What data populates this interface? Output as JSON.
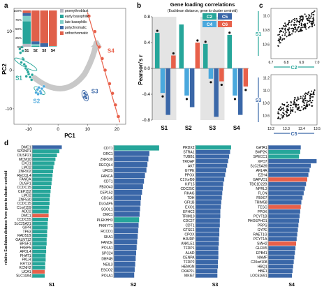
{
  "panel_labels": {
    "a": "a",
    "b": "b",
    "c": "c",
    "d": "d"
  },
  "colors": {
    "teal": "#26a69a",
    "blue": "#3a67a8",
    "red": "#e8604a",
    "sky": "#4aa8dd",
    "gray_bg": "#e4e4e4",
    "s1_stage_colors": [
      "#b9b9c4",
      "#27a49a",
      "#7ecfc8",
      "#3c6aa6",
      "#e0604a"
    ]
  },
  "chart_data": [
    {
      "panel": "a",
      "type": "scatter",
      "title": "",
      "xlabel": "PC1",
      "ylabel": "PC2",
      "xlim": [
        -15,
        23
      ],
      "ylim": [
        -14,
        16
      ],
      "x_ticks": [
        "-10",
        "0",
        "10",
        "20"
      ],
      "y_ticks": [
        "-10",
        "0",
        "10"
      ],
      "arrow_label_s4": "S4",
      "clusters": [
        {
          "name": "S1",
          "points": [
            [
              -12,
              3
            ],
            [
              -12.5,
              2
            ],
            [
              -11.5,
              1.5
            ],
            [
              -11,
              0.5
            ],
            [
              -10.5,
              0
            ],
            [
              -10,
              -1
            ],
            [
              -9.5,
              -1.8
            ],
            [
              -12.8,
              4.5
            ],
            [
              -13,
              5.5
            ],
            [
              -12.2,
              6
            ],
            [
              -9,
              -2.5
            ],
            [
              -11.8,
              2.8
            ],
            [
              -10.2,
              -0.5
            ],
            [
              -8.8,
              -1.2
            ],
            [
              -11,
              1
            ],
            [
              -12,
              5
            ],
            [
              -10.8,
              -1.6
            ]
          ]
        },
        {
          "name": "S2",
          "points": [
            [
              -7,
              -5
            ],
            [
              -6.5,
              -4.5
            ],
            [
              -6,
              -5.5
            ],
            [
              -7.5,
              -5.8
            ],
            [
              -5.5,
              -4.8
            ],
            [
              -4.8,
              -4.2
            ],
            [
              -6.8,
              -6.2
            ],
            [
              -5.8,
              -6
            ]
          ]
        },
        {
          "name": "S3",
          "points": [
            [
              9,
              -6
            ],
            [
              9.5,
              -6.5
            ],
            [
              8.8,
              -7
            ],
            [
              9.6,
              -7.2
            ],
            [
              9.2,
              -6.8
            ]
          ]
        },
        {
          "name": "S4",
          "points": [
            [
              10.5,
              14
            ],
            [
              12.5,
              10
            ],
            [
              14,
              6
            ],
            [
              15,
              3
            ],
            [
              16,
              0
            ],
            [
              17.5,
              -3.5
            ],
            [
              18.5,
              -6
            ],
            [
              19.5,
              -9
            ],
            [
              20.5,
              -12
            ]
          ]
        }
      ],
      "inset": {
        "type": "stacked_bar",
        "categories": [
          "S1",
          "S2",
          "S3",
          "S4"
        ],
        "y_ticks": [
          "100%",
          "75%",
          "50%",
          "25%",
          "0%"
        ],
        "legend": [
          "proerythroblast",
          "early basophilic",
          "late basophilic",
          "polychromatic",
          "orthochromatic"
        ],
        "values": [
          [
            0.08,
            0.62,
            0.15,
            0.08,
            0.07
          ],
          [
            0.0,
            0.02,
            0.05,
            0.08,
            0.85
          ],
          [
            0.0,
            0.0,
            0.0,
            0.1,
            0.9
          ],
          [
            0.0,
            0.0,
            0.02,
            0.0,
            0.98
          ]
        ]
      }
    },
    {
      "panel": "b",
      "type": "bar",
      "title": "Gene loading correlations",
      "subtitle": "(Euclidean distance, gene to cluster centroid)",
      "ylabel": "Pearson's r",
      "ylim": [
        -0.8,
        0.8
      ],
      "y_ticks": [
        "0.8",
        "0.4",
        "0.0",
        "-0.4",
        "-0.8"
      ],
      "categories": [
        "S1",
        "S2",
        "S3",
        "S4"
      ],
      "legend": [
        "C2",
        "C5",
        "C4",
        "C6"
      ],
      "series": [
        {
          "name": "C2",
          "values": [
            0.55,
            0.68,
            0.38,
            0.52
          ]
        },
        {
          "name": "C4",
          "values": [
            -0.38,
            -0.42,
            -0.16,
            -0.42
          ]
        },
        {
          "name": "C5",
          "values": [
            -0.72,
            -0.6,
            -0.75,
            -0.72
          ]
        },
        {
          "name": "C6",
          "values": [
            0.2,
            0.4,
            -0.2,
            -0.28
          ]
        }
      ],
      "stars": [
        [
          1,
          1,
          0,
          1
        ],
        [
          0,
          1,
          0,
          1
        ],
        [
          1,
          1,
          0,
          1
        ],
        [
          1,
          1,
          0,
          1
        ]
      ]
    },
    {
      "panel": "c_top",
      "type": "scatter",
      "xlabel": "C2",
      "ylabel": "S1",
      "xlim": [
        6.7,
        7.0
      ],
      "ylim": [
        10.4,
        11.1
      ],
      "x_ticks": [
        "6.7",
        "6.8",
        "6.9",
        "7.0"
      ],
      "y_ticks": [
        "11.0",
        "10.8",
        "10.6"
      ],
      "n_points": 180
    },
    {
      "panel": "c_bottom",
      "type": "scatter",
      "xlabel": "C5",
      "ylabel": "S3",
      "xlim": [
        13.2,
        13.5
      ],
      "ylim": [
        10.45,
        11.25
      ],
      "x_ticks": [
        "13.2",
        "13.3",
        "13.4",
        "13.5"
      ],
      "y_ticks": [
        "11.2",
        "11.0",
        "10.8",
        "10.6"
      ],
      "n_points": 170
    },
    {
      "panel": "d",
      "type": "bar",
      "ylabel": "relative Euclidean distance from gene to cluster centroid",
      "groups": [
        {
          "name": "S1",
          "genes": [
            "DMC1",
            "SPRNP1",
            "DUSP21",
            "MCM10",
            "EXO1",
            "LMO2",
            "ZNF502",
            "RECQL4",
            "FANCA",
            "DUSP1",
            "CCDC15",
            "CEP152",
            "LMO2",
            "ZNF530",
            "CCDC15",
            "C1orf159",
            "ADD2",
            "DMC1",
            "CCDC55",
            "SLC25A21",
            "GIPR",
            "TP63",
            "RAD51B",
            "GALNT12",
            "BRSF1",
            "FKBP5",
            "APOL4",
            "PHAT1",
            "PKLR",
            "KRT13",
            "KCNH2",
            "UCA1",
            "SLC10A4"
          ],
          "values": [
            0.6,
            0.55,
            0.5,
            0.47,
            0.45,
            0.43,
            0.42,
            0.41,
            0.4,
            0.39,
            0.38,
            0.37,
            0.36,
            0.35,
            0.35,
            0.34,
            0.33,
            0.33,
            0.32,
            0.31,
            0.31,
            0.3,
            0.3,
            0.29,
            0.29,
            0.28,
            0.28,
            0.27,
            0.27,
            0.26,
            0.26,
            0.25,
            0.25
          ],
          "colors": [
            "b",
            "t",
            "t",
            "t",
            "t",
            "t",
            "t",
            "t",
            "t",
            "t",
            "t",
            "t",
            "t",
            "t",
            "t",
            "t",
            "t",
            "r",
            "t",
            "t",
            "t",
            "t",
            "t",
            "t",
            "t",
            "t",
            "t",
            "t",
            "t",
            "t",
            "t",
            "r",
            "t"
          ]
        },
        {
          "name": "S2",
          "genes": [
            "CDT1",
            "ORC1",
            "ZNF530",
            "RECQL4",
            "UROS",
            "FANCA",
            "CDT1",
            "FBXO43",
            "CEP152",
            "CDC45",
            "DLGAP5",
            "SGOL1",
            "DMC1",
            "PLEKHH3",
            "PKMYT1",
            "RCCD1",
            "SKA1",
            "FANCE",
            "POLA1",
            "SPC24",
            "DBF4B",
            "NEIL3",
            "ESCO2",
            "POLA1"
          ],
          "values": [
            0.92,
            0.72,
            0.7,
            0.68,
            0.66,
            0.63,
            0.61,
            0.59,
            0.57,
            0.55,
            0.54,
            0.53,
            0.52,
            0.51,
            0.5,
            0.49,
            0.48,
            0.47,
            0.46,
            0.45,
            0.44,
            0.43,
            0.42,
            0.41
          ],
          "colors": [
            "t",
            "b",
            "b",
            "b",
            "b",
            "b",
            "b",
            "b",
            "b",
            "b",
            "b",
            "b",
            "b",
            "t",
            "b",
            "b",
            "b",
            "b",
            "b",
            "b",
            "b",
            "b",
            "b",
            "b"
          ]
        },
        {
          "name": "S3",
          "genes": [
            "PRDX2",
            "STRA1",
            "TUBB1",
            "TROAP",
            "AK7",
            "GYPE",
            "PPOX",
            "C17orf99",
            "KIF15",
            "CDC25C",
            "RHAG",
            "TDH",
            "GFI1B",
            "EXO1",
            "EFHC2",
            "TRIM10",
            "CDC27",
            "CDT1",
            "GTSE1",
            "CPOX",
            "HJURP",
            "ANKLE1",
            "TFDP1",
            "ALAD",
            "CENPA",
            "TFDP2",
            "HEMGN",
            "CKAP2L",
            "MKI67"
          ],
          "values": [
            0.72,
            0.7,
            0.68,
            0.66,
            0.64,
            0.62,
            0.6,
            0.58,
            0.56,
            0.55,
            0.54,
            0.53,
            0.52,
            0.51,
            0.5,
            0.5,
            0.49,
            0.49,
            0.48,
            0.48,
            0.47,
            0.47,
            0.46,
            0.46,
            0.46,
            0.45,
            0.45,
            0.44,
            0.44
          ],
          "colors": [
            "t",
            "b",
            "b",
            "b",
            "b",
            "b",
            "b",
            "b",
            "b",
            "b",
            "b",
            "b",
            "b",
            "b",
            "b",
            "b",
            "b",
            "b",
            "b",
            "b",
            "b",
            "b",
            "b",
            "b",
            "b",
            "b",
            "b",
            "b",
            "b"
          ]
        },
        {
          "name": "S4",
          "genes": [
            "GATA1",
            "BMP2K",
            "SPECC1",
            "XPO7",
            "SLC25A39",
            "ARL4A",
            "EZH4",
            "GAPVD1",
            "TBC1D22B",
            "NPRL3",
            "FLCN",
            "FBX07",
            "TRIM58",
            "TESC",
            "PPOX",
            "PCYT1B",
            "PHOSPHO1",
            "PRPS",
            "GYPE",
            "RAET1G",
            "PCYT1A",
            "SIAH2",
            "GLRX5",
            "EPB41",
            "NAMF",
            "C20orf108",
            "HBQ1",
            "HBE1",
            "LOC61691"
          ],
          "values": [
            0.55,
            0.54,
            0.52,
            0.82,
            0.72,
            0.7,
            0.68,
            0.66,
            0.64,
            0.62,
            0.6,
            0.58,
            0.56,
            0.55,
            0.54,
            0.53,
            0.52,
            0.51,
            0.5,
            0.49,
            0.48,
            0.47,
            0.46,
            0.45,
            0.44,
            0.43,
            0.42,
            0.41,
            0.4
          ],
          "colors": [
            "b",
            "t",
            "t",
            "b",
            "b",
            "b",
            "b",
            "r",
            "b",
            "b",
            "b",
            "b",
            "b",
            "r",
            "b",
            "b",
            "b",
            "b",
            "b",
            "b",
            "b",
            "r",
            "b",
            "b",
            "b",
            "b",
            "b",
            "b",
            "b"
          ]
        }
      ]
    }
  ]
}
